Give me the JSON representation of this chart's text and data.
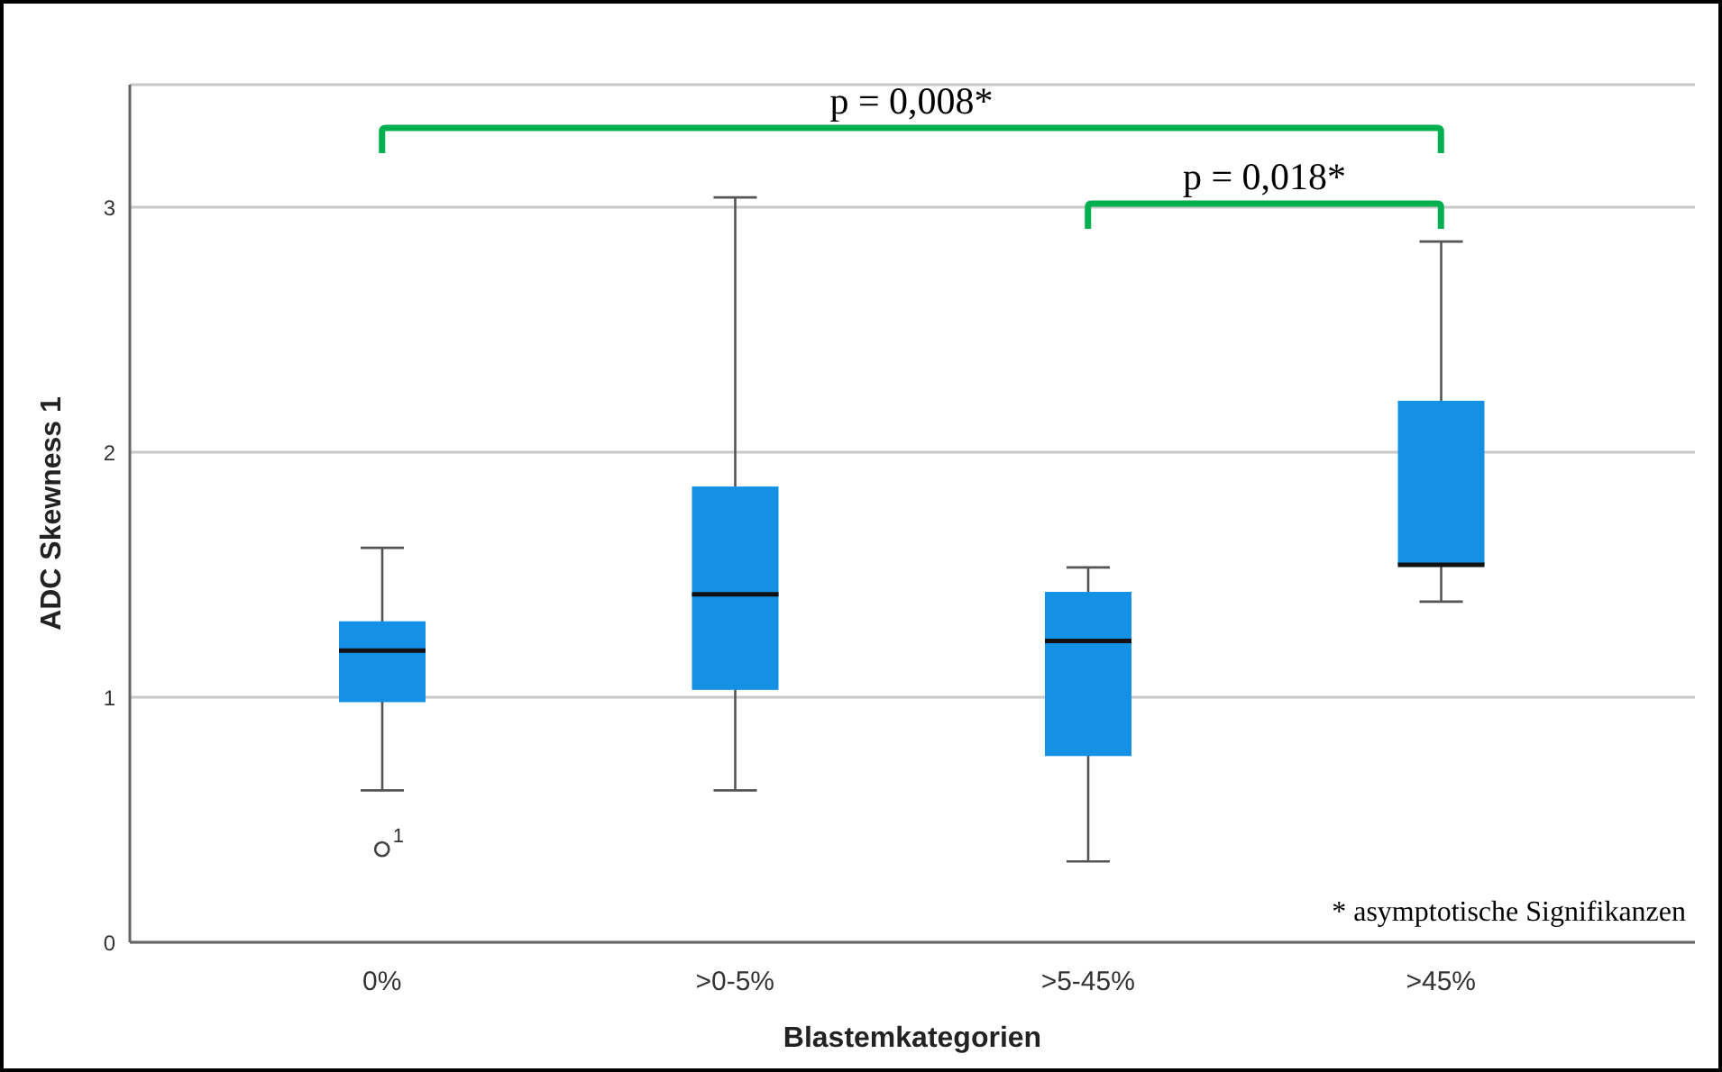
{
  "chart_data": {
    "type": "box",
    "xlabel": "Blastemkategorien",
    "ylabel": "ADC Skewness 1",
    "categories": [
      "0%",
      ">0-5%",
      ">5-45%",
      ">45%"
    ],
    "boxes": [
      {
        "low": 0.62,
        "q1": 0.98,
        "median": 1.19,
        "q3": 1.31,
        "high": 1.61,
        "outliers": [
          0.38
        ]
      },
      {
        "low": 0.62,
        "q1": 1.03,
        "median": 1.42,
        "q3": 1.86,
        "high": 3.04
      },
      {
        "low": 0.33,
        "q1": 0.76,
        "median": 1.23,
        "q3": 1.43,
        "high": 1.53
      },
      {
        "low": 1.39,
        "q1": 1.54,
        "median": 1.54,
        "q3": 2.21,
        "high": 2.86
      }
    ],
    "color": "#1490e4",
    "ylim": [
      0,
      3.5
    ],
    "yticks": [
      0,
      1,
      2,
      3
    ],
    "grid": "y",
    "annotations": [
      "p = 0,008*",
      "p = 0,018*",
      "* asymptotische Signifikanzen",
      "1"
    ]
  }
}
